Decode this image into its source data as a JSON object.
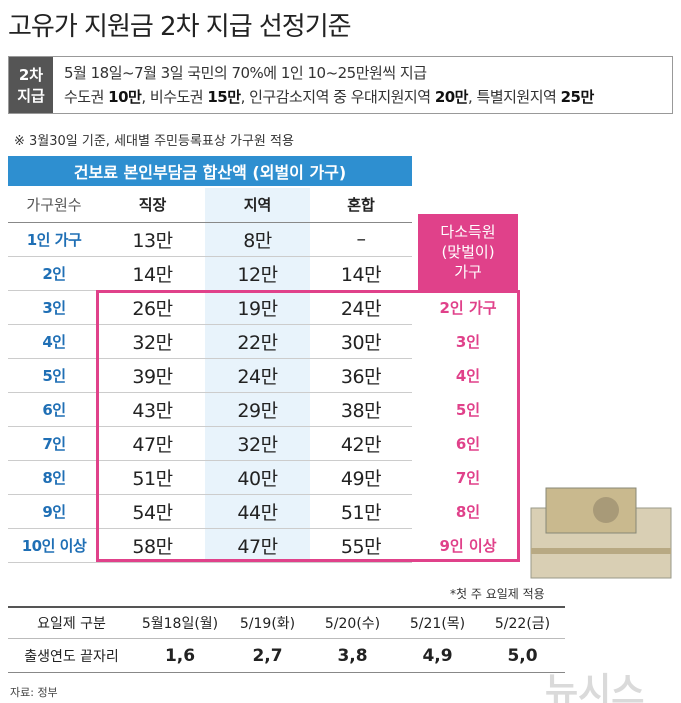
{
  "title": "고유가 지원금 2차 지급 선정기준",
  "box": {
    "label": [
      "2차",
      "지급"
    ],
    "line1": "5월 18일~7월 3일 국민의 70%에 1인 10~25만원씩 지급",
    "line2": [
      "수도권 ",
      "10만",
      ", 비수도권 ",
      "15만",
      ", 인구감소지역 중 우대지원지역 ",
      "20만",
      ", 특별지원지역 ",
      "25만"
    ]
  },
  "note": "※ 3월30일 기준, 세대별 주민등록표상 가구원 적용",
  "table": {
    "caption": "건보료 본인부담금 합산액 (외벌이 가구)",
    "columns": [
      "가구원수",
      "직장",
      "지역",
      "혼합"
    ],
    "rows": [
      [
        "1인 가구",
        "13만",
        "8만",
        "–"
      ],
      [
        "2인",
        "14만",
        "12만",
        "14만"
      ],
      [
        "3인",
        "26만",
        "19만",
        "24만"
      ],
      [
        "4인",
        "32만",
        "22만",
        "30만"
      ],
      [
        "5인",
        "39만",
        "24만",
        "36만"
      ],
      [
        "6인",
        "43만",
        "29만",
        "38만"
      ],
      [
        "7인",
        "47만",
        "32만",
        "42만"
      ],
      [
        "8인",
        "51만",
        "40만",
        "49만"
      ],
      [
        "9인",
        "54만",
        "44만",
        "51만"
      ],
      [
        "10인 이상",
        "58만",
        "47만",
        "55만"
      ]
    ]
  },
  "side": {
    "header": [
      "다소득원",
      "(맞벌이)",
      "가구"
    ],
    "values": [
      "2인 가구",
      "3인",
      "4인",
      "5인",
      "6인",
      "7인",
      "8인",
      "9인 이상"
    ]
  },
  "footnote": "*첫 주 요일제 적용",
  "weekday": {
    "header": [
      "요일제 구분",
      "5월18일(월)",
      "5/19(화)",
      "5/20(수)",
      "5/21(목)",
      "5/22(금)"
    ],
    "row": [
      "출생연도 끝자리",
      "1,6",
      "2,7",
      "3,8",
      "4,9",
      "5,0"
    ]
  },
  "source": "자료: 정부",
  "watermark": "뉴시스"
}
